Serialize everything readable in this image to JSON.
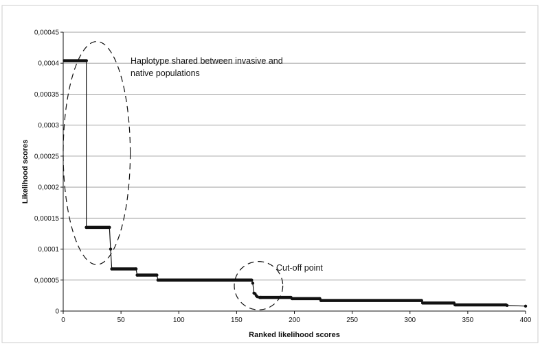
{
  "chart_data": {
    "type": "line",
    "title": "",
    "xlabel": "Ranked likelihood scores",
    "ylabel": "Likelihood scores",
    "xlim": [
      0,
      400
    ],
    "ylim": [
      0,
      0.00045
    ],
    "x_ticks": [
      0,
      50,
      100,
      150,
      200,
      250,
      300,
      350,
      400
    ],
    "x_tick_labels": [
      "0",
      "50",
      "100",
      "150",
      "200",
      "250",
      "300",
      "350",
      "400"
    ],
    "y_ticks": [
      0,
      5e-05,
      0.0001,
      0.00015,
      0.0002,
      0.00025,
      0.0003,
      0.00035,
      0.0004,
      0.00045
    ],
    "y_tick_labels": [
      "0",
      "0,00005",
      "0,0001",
      "0,00015",
      "0,0002",
      "0,00025",
      "0,0003",
      "0,00035",
      "0,0004",
      "0,00045"
    ],
    "grid": "horizontal",
    "legend": "none",
    "series": [
      {
        "color": "#111111",
        "x": [
          1,
          20,
          20,
          40,
          41,
          42,
          63,
          64,
          81,
          82,
          163,
          164,
          165,
          166,
          167,
          168,
          170,
          171,
          197,
          198,
          222,
          223,
          310,
          311,
          338,
          339,
          383,
          384,
          400
        ],
        "y": [
          0.000404,
          0.000404,
          0.000135,
          0.000135,
          0.0001,
          6.8e-05,
          6.8e-05,
          5.8e-05,
          5.8e-05,
          5e-05,
          5e-05,
          4.5e-05,
          2.9e-05,
          2.8e-05,
          2.5e-05,
          2.3e-05,
          2.2e-05,
          2.2e-05,
          2.2e-05,
          2e-05,
          2e-05,
          1.7e-05,
          1.7e-05,
          1.3e-05,
          1.3e-05,
          1e-05,
          1e-05,
          9e-06,
          8e-06
        ]
      }
    ],
    "annotations": [
      {
        "text_lines": [
          "Haplotype shared between invasive and",
          "native populations"
        ],
        "ellipse_center": [
          29,
          0.000255
        ],
        "ellipse_radii": [
          29,
          0.00018
        ]
      },
      {
        "text_lines": [
          "Cut-off point"
        ],
        "ellipse_center": [
          169,
          4.1e-05
        ],
        "ellipse_radii": [
          21,
          3.9e-05
        ]
      }
    ]
  }
}
